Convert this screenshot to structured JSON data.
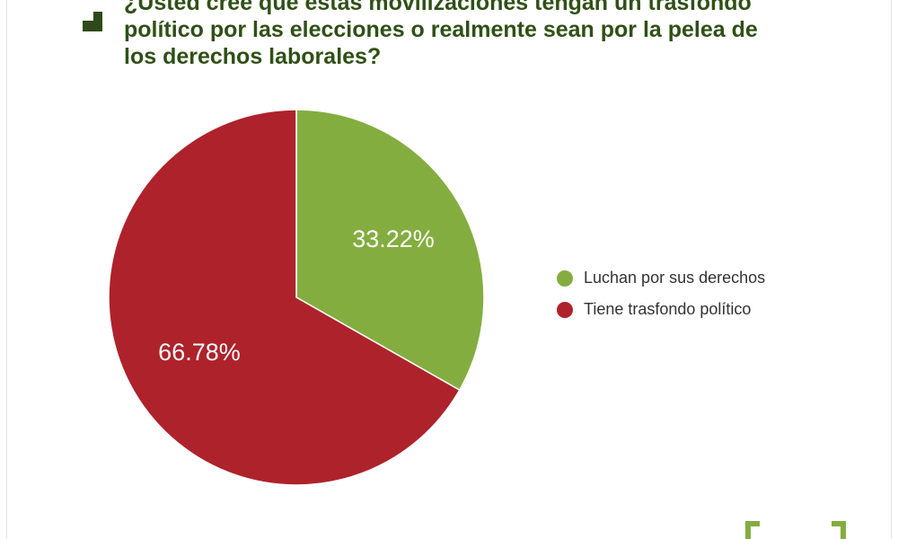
{
  "header": {
    "title": "¿Usted cree que estas movilizaciones tengan un trasfondo\npolítico por las elecciones o realmente sean por la pelea de\nlos derechos laborales?",
    "title_color": "#2f5016",
    "mark_icon": "corner-bracket-icon"
  },
  "chart_data": {
    "type": "pie",
    "title": "¿Usted cree que estas movilizaciones tengan un trasfondo político por las elecciones o realmente sean por la pelea de los derechos laborales?",
    "slices": [
      {
        "label": "Luchan por sus derechos",
        "value": 33.22,
        "display": "33.22%",
        "color": "#84ad3f"
      },
      {
        "label": "Tiene trasfondo político",
        "value": 66.78,
        "display": "66.78%",
        "color": "#ae222b"
      }
    ],
    "start_angle": "12 o'clock",
    "direction": "clockwise",
    "legend_position": "right"
  },
  "footer": {
    "mark_color": "#84ad3f",
    "mark_icon": "corner-bracket-icon"
  }
}
